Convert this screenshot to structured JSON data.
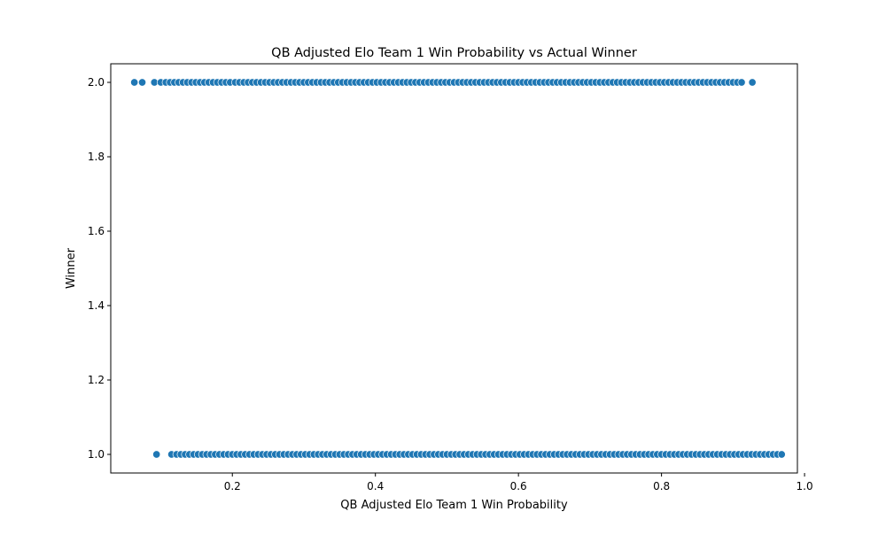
{
  "chart_data": {
    "type": "scatter",
    "title": "QB Adjusted Elo Team 1 Win Probability vs Actual Winner",
    "xlabel": "QB Adjusted Elo Team 1 Win Probability",
    "ylabel": "Winner",
    "xlim": [
      0.03,
      0.99
    ],
    "ylim": [
      0.95,
      2.05
    ],
    "xticks": [
      0.2,
      0.4,
      0.6,
      0.8,
      1.0
    ],
    "xtick_labels": [
      "0.2",
      "0.4",
      "0.6",
      "0.8",
      "1.0"
    ],
    "yticks": [
      1.0,
      1.2,
      1.4,
      1.6,
      1.8,
      2.0
    ],
    "ytick_labels": [
      "1.0",
      "1.2",
      "1.4",
      "1.6",
      "1.8",
      "2.0"
    ],
    "grid": false,
    "legend": "none",
    "marker_color": "#1f77b4",
    "marker_edge_color": "#ffffff",
    "series": [
      {
        "y": 2.0,
        "x_points": [
          0.063,
          0.074,
          0.091,
          0.1,
          0.107,
          0.113,
          0.119,
          0.125,
          0.131,
          0.137,
          0.143,
          0.149,
          0.155,
          0.161,
          0.167,
          0.173,
          0.179,
          0.185,
          0.191,
          0.197,
          0.204,
          0.21,
          0.216,
          0.222,
          0.228,
          0.234,
          0.24,
          0.246,
          0.252,
          0.258,
          0.264,
          0.27,
          0.276,
          0.282,
          0.288,
          0.294,
          0.3,
          0.306,
          0.312,
          0.318,
          0.324,
          0.33,
          0.336,
          0.342,
          0.348,
          0.354,
          0.36,
          0.366,
          0.372,
          0.378,
          0.384,
          0.39,
          0.396,
          0.402,
          0.408,
          0.414,
          0.42,
          0.426,
          0.432,
          0.438,
          0.444,
          0.45,
          0.456,
          0.462,
          0.468,
          0.474,
          0.48,
          0.486,
          0.492,
          0.498,
          0.504,
          0.51,
          0.516,
          0.522,
          0.528,
          0.534,
          0.54,
          0.546,
          0.552,
          0.558,
          0.564,
          0.57,
          0.576,
          0.582,
          0.588,
          0.594,
          0.6,
          0.606,
          0.612,
          0.618,
          0.624,
          0.63,
          0.636,
          0.642,
          0.648,
          0.654,
          0.66,
          0.666,
          0.672,
          0.678,
          0.684,
          0.69,
          0.696,
          0.702,
          0.708,
          0.714,
          0.72,
          0.726,
          0.732,
          0.738,
          0.744,
          0.75,
          0.756,
          0.762,
          0.768,
          0.774,
          0.78,
          0.786,
          0.792,
          0.798,
          0.804,
          0.81,
          0.816,
          0.822,
          0.828,
          0.834,
          0.84,
          0.846,
          0.852,
          0.858,
          0.864,
          0.87,
          0.876,
          0.882,
          0.888,
          0.894,
          0.9,
          0.906,
          0.912,
          0.927
        ]
      },
      {
        "y": 1.0,
        "x_points": [
          0.094,
          0.115,
          0.122,
          0.128,
          0.134,
          0.14,
          0.146,
          0.152,
          0.158,
          0.164,
          0.17,
          0.176,
          0.182,
          0.188,
          0.194,
          0.2,
          0.206,
          0.212,
          0.218,
          0.224,
          0.23,
          0.236,
          0.242,
          0.248,
          0.254,
          0.26,
          0.266,
          0.272,
          0.278,
          0.284,
          0.29,
          0.296,
          0.302,
          0.308,
          0.314,
          0.32,
          0.326,
          0.332,
          0.338,
          0.344,
          0.35,
          0.356,
          0.362,
          0.368,
          0.374,
          0.38,
          0.386,
          0.392,
          0.398,
          0.404,
          0.41,
          0.416,
          0.422,
          0.428,
          0.434,
          0.44,
          0.446,
          0.452,
          0.458,
          0.464,
          0.47,
          0.476,
          0.482,
          0.488,
          0.494,
          0.5,
          0.506,
          0.512,
          0.518,
          0.524,
          0.53,
          0.536,
          0.542,
          0.548,
          0.554,
          0.56,
          0.566,
          0.572,
          0.578,
          0.584,
          0.59,
          0.596,
          0.602,
          0.608,
          0.614,
          0.62,
          0.626,
          0.632,
          0.638,
          0.644,
          0.65,
          0.656,
          0.662,
          0.668,
          0.674,
          0.68,
          0.686,
          0.692,
          0.698,
          0.704,
          0.71,
          0.716,
          0.722,
          0.728,
          0.734,
          0.74,
          0.746,
          0.752,
          0.758,
          0.764,
          0.77,
          0.776,
          0.782,
          0.788,
          0.794,
          0.8,
          0.806,
          0.812,
          0.818,
          0.824,
          0.83,
          0.836,
          0.842,
          0.848,
          0.854,
          0.86,
          0.866,
          0.872,
          0.878,
          0.884,
          0.89,
          0.896,
          0.902,
          0.908,
          0.914,
          0.92,
          0.926,
          0.932,
          0.938,
          0.944,
          0.95,
          0.956,
          0.962,
          0.968
        ]
      }
    ]
  }
}
